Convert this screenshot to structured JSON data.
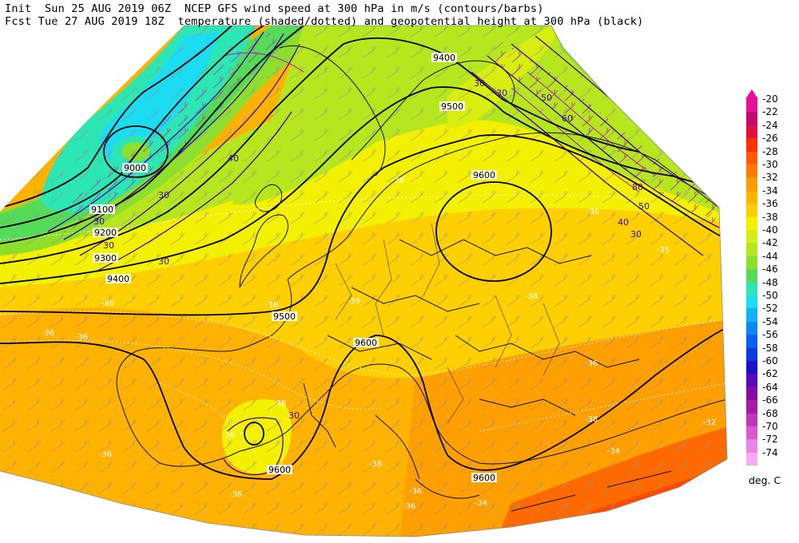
{
  "header": {
    "line1": "Init  Sun 25 AUG 2019 06Z  NCEP GFS wind speed at 300 hPa in m/s (contours/barbs)",
    "line2": "Fcst Tue 27 AUG 2019 18Z  temperature (shaded/dotted) and geopotential height at 300 hPa (black)"
  },
  "legend": {
    "units": "deg. C",
    "levels": [
      "-20",
      "-22",
      "-24",
      "-26",
      "-28",
      "-30",
      "-32",
      "-34",
      "-36",
      "-38",
      "-40",
      "-42",
      "-44",
      "-46",
      "-48",
      "-50",
      "-52",
      "-54",
      "-56",
      "-58",
      "-60",
      "-62",
      "-64",
      "-66",
      "-68",
      "-70",
      "-72",
      "-74"
    ],
    "colors": [
      "#e8109a",
      "#c40a6e",
      "#e01040",
      "#ff3000",
      "#ff5a00",
      "#ff7a00",
      "#ff9a00",
      "#ffb300",
      "#ffd000",
      "#f3f000",
      "#d8ee10",
      "#b6e61e",
      "#8ede2e",
      "#54dc58",
      "#2ce6b4",
      "#1cdcf2",
      "#10b4f6",
      "#0c88f2",
      "#0a60ee",
      "#0a3ae4",
      "#1a10cc",
      "#5a0ab8",
      "#8a0aa4",
      "#a81aa6",
      "#c036b8",
      "#d85ad0",
      "#ec84e4",
      "#f8aaf4"
    ]
  },
  "map_labels": {
    "height": [
      "9000",
      "9100",
      "9200",
      "9300",
      "9400",
      "9400",
      "9500",
      "9500",
      "9600",
      "9600",
      "9600",
      "9600"
    ],
    "wind": [
      "30",
      "40",
      "30",
      "30",
      "30",
      "30",
      "30",
      "50",
      "60",
      "80",
      "50",
      "40",
      "30",
      "30"
    ],
    "temp": [
      "-38",
      "-36",
      "-36",
      "-36",
      "-36",
      "-38",
      "-40",
      "-38",
      "-38",
      "-38",
      "-36",
      "-38",
      "-36",
      "-36",
      "-34",
      "-36",
      "-38",
      "-35",
      "-32",
      "-34",
      "-36"
    ]
  }
}
